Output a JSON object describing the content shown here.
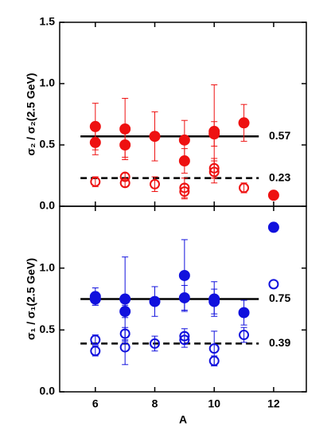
{
  "chart_data": [
    {
      "type": "scatter",
      "ylabel": "σ₂ / σ₂(2.5 GeV)",
      "xlim": [
        4.8,
        13.1
      ],
      "ylim": [
        0,
        1.5
      ],
      "yticks": [
        {
          "value": 0,
          "label": "0.0"
        },
        {
          "value": 0.5,
          "label": "0.5"
        },
        {
          "value": 1,
          "label": "1.0"
        },
        {
          "value": 1.5,
          "label": "1.5"
        }
      ],
      "series": [
        {
          "marker": "filled",
          "color": "#ee1111",
          "x": [
            6,
            6,
            7,
            7,
            8,
            9,
            9,
            10,
            10,
            11,
            12
          ],
          "values": [
            0.65,
            0.52,
            0.63,
            0.5,
            0.57,
            0.54,
            0.37,
            0.61,
            0.59,
            0.68,
            0.09
          ],
          "errors": [
            0.19,
            0.1,
            0.25,
            0.1,
            0.2,
            0.16,
            0.1,
            0.38,
            0.1,
            0.15,
            null
          ]
        },
        {
          "marker": "open",
          "color": "#ee1111",
          "x": [
            6,
            7,
            7,
            8,
            9,
            9,
            10,
            10,
            11
          ],
          "values": [
            0.2,
            0.24,
            0.19,
            0.18,
            0.15,
            0.12,
            0.31,
            0.28,
            0.15
          ],
          "errors": [
            0.04,
            0.03,
            0.03,
            0.06,
            0.08,
            0.06,
            0.08,
            0.09,
            0.04
          ]
        }
      ],
      "lines": [
        {
          "value": 0.57,
          "style": "solid"
        },
        {
          "value": 0.23,
          "style": "dashed"
        }
      ]
    },
    {
      "type": "scatter",
      "ylabel": "σ₁ / σ₁(2.5 GeV)",
      "xlabel": "A",
      "xlim": [
        4.8,
        13.1
      ],
      "ylim": [
        0,
        1.5
      ],
      "xticks": [
        6,
        8,
        10,
        12
      ],
      "yticks": [
        {
          "value": 0,
          "label": "0.0"
        },
        {
          "value": 0.5,
          "label": "0.5"
        },
        {
          "value": 1,
          "label": "1.0"
        }
      ],
      "series": [
        {
          "marker": "filled",
          "color": "#1111dd",
          "x": [
            6,
            6,
            7,
            7,
            8,
            9,
            9,
            10,
            10,
            11,
            12
          ],
          "values": [
            0.77,
            0.75,
            0.75,
            0.65,
            0.73,
            0.94,
            0.76,
            0.75,
            0.73,
            0.64,
            1.33
          ],
          "errors": [
            0.07,
            0.05,
            0.34,
            0.05,
            0.12,
            0.29,
            0.1,
            0.14,
            0.1,
            0.1,
            null
          ]
        },
        {
          "marker": "open",
          "color": "#1111dd",
          "x": [
            6,
            6,
            7,
            7,
            8,
            9,
            9,
            10,
            10,
            11,
            12
          ],
          "values": [
            0.42,
            0.33,
            0.47,
            0.36,
            0.39,
            0.45,
            0.42,
            0.35,
            0.25,
            0.46,
            0.87
          ],
          "errors": [
            0.04,
            0.04,
            0.05,
            0.14,
            0.06,
            0.06,
            0.06,
            0.14,
            0.04,
            0.06,
            null
          ]
        }
      ],
      "lines": [
        {
          "value": 0.75,
          "style": "solid"
        },
        {
          "value": 0.39,
          "style": "dashed"
        }
      ]
    }
  ]
}
